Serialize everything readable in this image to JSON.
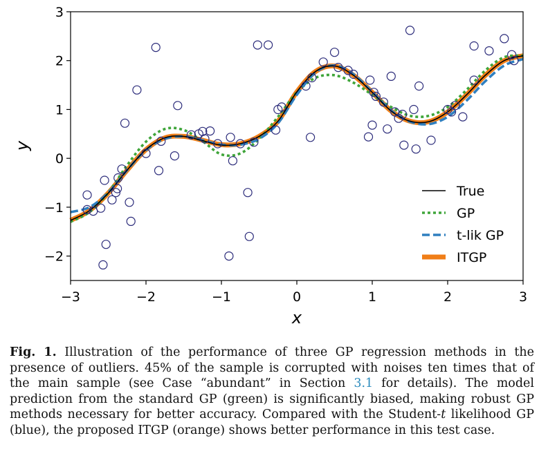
{
  "chart_data": {
    "type": "line",
    "xlabel": "x",
    "ylabel": "y",
    "xlim": [
      -3,
      3
    ],
    "ylim": [
      -2.5,
      3
    ],
    "xticks": [
      -3,
      -2,
      -1,
      0,
      1,
      2,
      3
    ],
    "xtick_labels": [
      "−3",
      "−2",
      "−1",
      "0",
      "1",
      "2",
      "3"
    ],
    "yticks": [
      -2,
      -1,
      0,
      1,
      2,
      3
    ],
    "ytick_labels": [
      "−2",
      "−1",
      "0",
      "1",
      "2",
      "3"
    ],
    "grid": false,
    "legend_position": "lower-right",
    "x": [
      -3.0,
      -2.75,
      -2.5,
      -2.25,
      -2.0,
      -1.75,
      -1.5,
      -1.25,
      -1.0,
      -0.75,
      -0.5,
      -0.25,
      0.0,
      0.25,
      0.5,
      0.75,
      1.0,
      1.25,
      1.5,
      1.75,
      2.0,
      2.25,
      2.5,
      2.75,
      3.0
    ],
    "series": [
      {
        "name": "True",
        "color": "#000000",
        "style": "solid",
        "values": [
          -1.27,
          -1.07,
          -0.71,
          -0.24,
          0.18,
          0.42,
          0.45,
          0.36,
          0.27,
          0.3,
          0.45,
          0.76,
          1.36,
          1.78,
          1.89,
          1.7,
          1.35,
          0.97,
          0.76,
          0.75,
          0.95,
          1.3,
          1.7,
          2.0,
          2.1
        ]
      },
      {
        "name": "GP",
        "color": "#3fa53a",
        "style": "dotted",
        "values": [
          -1.3,
          -1.1,
          -0.7,
          -0.14,
          0.34,
          0.6,
          0.58,
          0.35,
          0.08,
          0.1,
          0.4,
          0.85,
          1.35,
          1.65,
          1.7,
          1.55,
          1.3,
          1.05,
          0.87,
          0.87,
          1.05,
          1.4,
          1.8,
          2.07,
          2.1
        ]
      },
      {
        "name": "t-lik GP",
        "color": "#2f7fbf",
        "style": "dashed",
        "values": [
          -1.1,
          -1.0,
          -0.7,
          -0.24,
          0.17,
          0.4,
          0.45,
          0.37,
          0.28,
          0.28,
          0.4,
          0.72,
          1.3,
          1.76,
          1.9,
          1.72,
          1.36,
          0.98,
          0.75,
          0.7,
          0.85,
          1.18,
          1.58,
          1.9,
          2.03
        ]
      },
      {
        "name": "ITGP",
        "color": "#f07e17",
        "style": "solid",
        "values": [
          -1.27,
          -1.07,
          -0.71,
          -0.24,
          0.18,
          0.42,
          0.45,
          0.37,
          0.28,
          0.3,
          0.45,
          0.76,
          1.36,
          1.78,
          1.89,
          1.7,
          1.35,
          0.97,
          0.76,
          0.75,
          0.95,
          1.3,
          1.7,
          2.0,
          2.1
        ]
      }
    ],
    "samples": {
      "marker": "open-circle",
      "color": "#2b2b7a",
      "points": [
        [
          -2.78,
          -0.75
        ],
        [
          -2.78,
          -1.05
        ],
        [
          -2.7,
          -1.08
        ],
        [
          -2.6,
          -1.02
        ],
        [
          -2.57,
          -2.18
        ],
        [
          -2.55,
          -0.45
        ],
        [
          -2.53,
          -1.76
        ],
        [
          -2.45,
          -0.85
        ],
        [
          -2.4,
          -0.7
        ],
        [
          -2.38,
          -0.62
        ],
        [
          -2.37,
          -0.4
        ],
        [
          -2.32,
          -0.22
        ],
        [
          -2.28,
          0.72
        ],
        [
          -2.22,
          -0.9
        ],
        [
          -2.2,
          -1.29
        ],
        [
          -2.12,
          1.4
        ],
        [
          -2.0,
          0.1
        ],
        [
          -1.87,
          2.27
        ],
        [
          -1.83,
          -0.25
        ],
        [
          -1.8,
          0.35
        ],
        [
          -1.62,
          0.05
        ],
        [
          -1.58,
          1.08
        ],
        [
          -1.4,
          0.48
        ],
        [
          -1.3,
          0.5
        ],
        [
          -1.25,
          0.55
        ],
        [
          -1.22,
          0.4
        ],
        [
          -1.15,
          0.56
        ],
        [
          -1.05,
          0.3
        ],
        [
          -0.9,
          -2.0
        ],
        [
          -0.88,
          0.43
        ],
        [
          -0.85,
          -0.05
        ],
        [
          -0.75,
          0.3
        ],
        [
          -0.65,
          -0.7
        ],
        [
          -0.63,
          -1.6
        ],
        [
          -0.57,
          0.33
        ],
        [
          -0.52,
          2.32
        ],
        [
          -0.38,
          2.32
        ],
        [
          -0.28,
          0.58
        ],
        [
          -0.25,
          1.0
        ],
        [
          -0.2,
          1.05
        ],
        [
          0.12,
          1.48
        ],
        [
          0.18,
          0.43
        ],
        [
          0.2,
          1.65
        ],
        [
          0.35,
          1.97
        ],
        [
          0.5,
          2.17
        ],
        [
          0.55,
          1.86
        ],
        [
          0.68,
          1.8
        ],
        [
          0.75,
          1.72
        ],
        [
          0.95,
          0.44
        ],
        [
          0.97,
          1.6
        ],
        [
          1.0,
          0.68
        ],
        [
          1.02,
          1.35
        ],
        [
          1.05,
          1.27
        ],
        [
          1.15,
          1.15
        ],
        [
          1.2,
          0.6
        ],
        [
          1.25,
          1.68
        ],
        [
          1.3,
          0.95
        ],
        [
          1.35,
          0.82
        ],
        [
          1.4,
          0.9
        ],
        [
          1.42,
          0.27
        ],
        [
          1.5,
          2.62
        ],
        [
          1.55,
          1.0
        ],
        [
          1.58,
          0.19
        ],
        [
          1.62,
          1.48
        ],
        [
          1.78,
          0.37
        ],
        [
          2.0,
          1.0
        ],
        [
          2.05,
          0.95
        ],
        [
          2.1,
          1.08
        ],
        [
          2.2,
          0.85
        ],
        [
          2.35,
          1.6
        ],
        [
          2.35,
          2.3
        ],
        [
          2.55,
          2.2
        ],
        [
          2.75,
          2.45
        ],
        [
          2.85,
          2.12
        ],
        [
          2.88,
          2.0
        ]
      ]
    }
  },
  "caption": {
    "label": "Fig. 1.",
    "text_1": " Illustration of the performance of three GP regression methods in the presence of outliers. 45% of the sample is corrupted with noises ten times that of the main sample (see Case “abundant” in Section ",
    "section_ref": "3.1",
    "text_2": " for details). The model prediction from the standard GP (green) is significantly biased, making robust GP methods necessary for better accuracy. Compared with the Student-",
    "t_italic": "t",
    "text_3": " likelihood GP (blue), the proposed ITGP (orange) shows better performance in this test case."
  }
}
